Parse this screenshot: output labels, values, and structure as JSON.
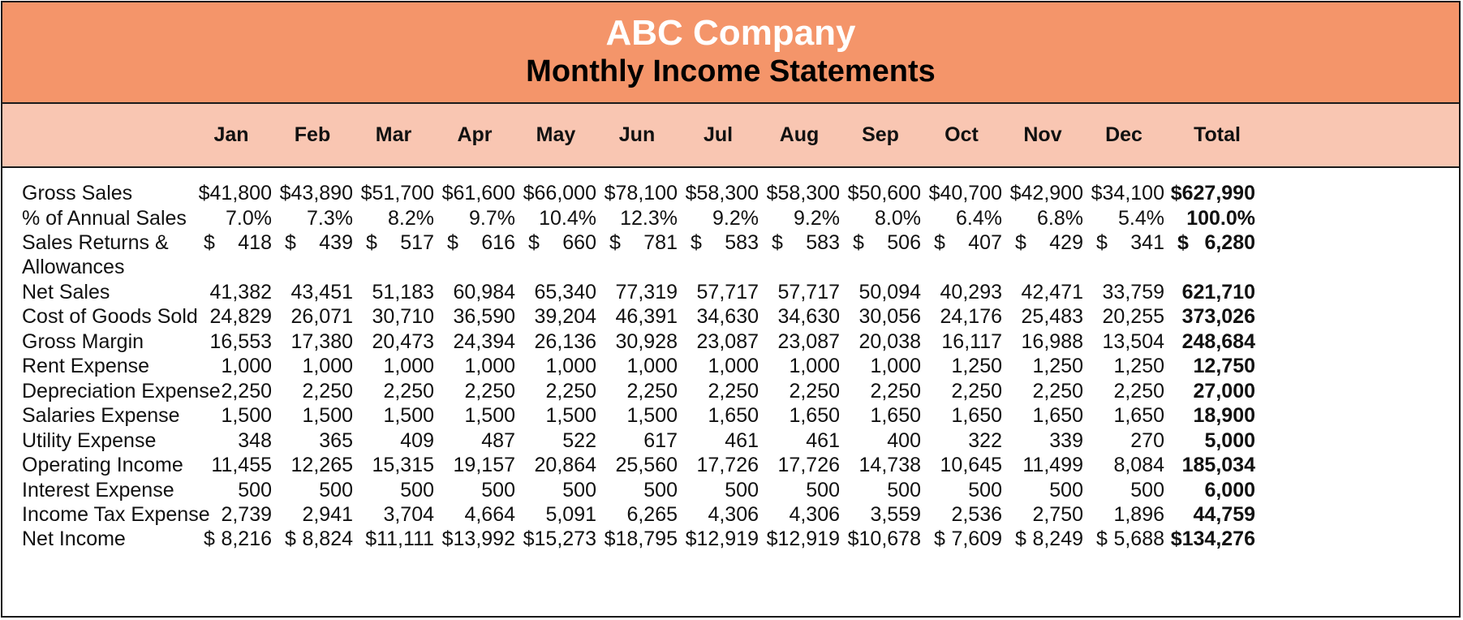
{
  "title": {
    "company": "ABC Company",
    "statement": "Monthly Income Statements"
  },
  "colors": {
    "title_band": "#f4956a",
    "header_band": "#f9c6b2",
    "border": "#1a1a1a"
  },
  "columns": [
    "Jan",
    "Feb",
    "Mar",
    "Apr",
    "May",
    "Jun",
    "Jul",
    "Aug",
    "Sep",
    "Oct",
    "Nov",
    "Dec",
    "Total"
  ],
  "rows": [
    {
      "label": "Gross Sales",
      "values": [
        "$41,800",
        "$43,890",
        "$51,700",
        "$61,600",
        "$66,000",
        "$78,100",
        "$58,300",
        "$58,300",
        "$50,600",
        "$40,700",
        "$42,900",
        "$34,100",
        "$627,990"
      ]
    },
    {
      "label": "% of Annual Sales",
      "values": [
        "7.0%",
        "7.3%",
        "8.2%",
        "9.7%",
        "10.4%",
        "12.3%",
        "9.2%",
        "9.2%",
        "8.0%",
        "6.4%",
        "6.8%",
        "5.4%",
        "100.0%"
      ]
    },
    {
      "label": "Sales Returns &",
      "label2": "Allowances",
      "dollar": true,
      "values": [
        "418",
        "439",
        "517",
        "616",
        "660",
        "781",
        "583",
        "583",
        "506",
        "407",
        "429",
        "341",
        "6,280"
      ]
    },
    {
      "label": "Net Sales",
      "values": [
        "41,382",
        "43,451",
        "51,183",
        "60,984",
        "65,340",
        "77,319",
        "57,717",
        "57,717",
        "50,094",
        "40,293",
        "42,471",
        "33,759",
        "621,710"
      ]
    },
    {
      "label": "Cost of Goods Sold",
      "values": [
        "24,829",
        "26,071",
        "30,710",
        "36,590",
        "39,204",
        "46,391",
        "34,630",
        "34,630",
        "30,056",
        "24,176",
        "25,483",
        "20,255",
        "373,026"
      ]
    },
    {
      "label": "Gross Margin",
      "values": [
        "16,553",
        "17,380",
        "20,473",
        "24,394",
        "26,136",
        "30,928",
        "23,087",
        "23,087",
        "20,038",
        "16,117",
        "16,988",
        "13,504",
        "248,684"
      ]
    },
    {
      "label": "Rent Expense",
      "values": [
        "1,000",
        "1,000",
        "1,000",
        "1,000",
        "1,000",
        "1,000",
        "1,000",
        "1,000",
        "1,000",
        "1,250",
        "1,250",
        "1,250",
        "12,750"
      ]
    },
    {
      "label": "Depreciation Expense",
      "values": [
        "2,250",
        "2,250",
        "2,250",
        "2,250",
        "2,250",
        "2,250",
        "2,250",
        "2,250",
        "2,250",
        "2,250",
        "2,250",
        "2,250",
        "27,000"
      ]
    },
    {
      "label": "Salaries Expense",
      "values": [
        "1,500",
        "1,500",
        "1,500",
        "1,500",
        "1,500",
        "1,500",
        "1,650",
        "1,650",
        "1,650",
        "1,650",
        "1,650",
        "1,650",
        "18,900"
      ]
    },
    {
      "label": "Utility Expense",
      "values": [
        "348",
        "365",
        "409",
        "487",
        "522",
        "617",
        "461",
        "461",
        "400",
        "322",
        "339",
        "270",
        "5,000"
      ]
    },
    {
      "label": "Operating Income",
      "values": [
        "11,455",
        "12,265",
        "15,315",
        "19,157",
        "20,864",
        "25,560",
        "17,726",
        "17,726",
        "14,738",
        "10,645",
        "11,499",
        "8,084",
        "185,034"
      ]
    },
    {
      "label": "Interest Expense",
      "values": [
        "500",
        "500",
        "500",
        "500",
        "500",
        "500",
        "500",
        "500",
        "500",
        "500",
        "500",
        "500",
        "6,000"
      ]
    },
    {
      "label": "Income Tax Expense",
      "values": [
        "2,739",
        "2,941",
        "3,704",
        "4,664",
        "5,091",
        "6,265",
        "4,306",
        "4,306",
        "3,559",
        "2,536",
        "2,750",
        "1,896",
        "44,759"
      ]
    },
    {
      "label": "Net Income",
      "values": [
        "$ 8,216",
        "$ 8,824",
        "$11,111",
        "$13,992",
        "$15,273",
        "$18,795",
        "$12,919",
        "$12,919",
        "$10,678",
        "$ 7,609",
        "$ 8,249",
        "$ 5,688",
        "$134,276"
      ]
    }
  ]
}
